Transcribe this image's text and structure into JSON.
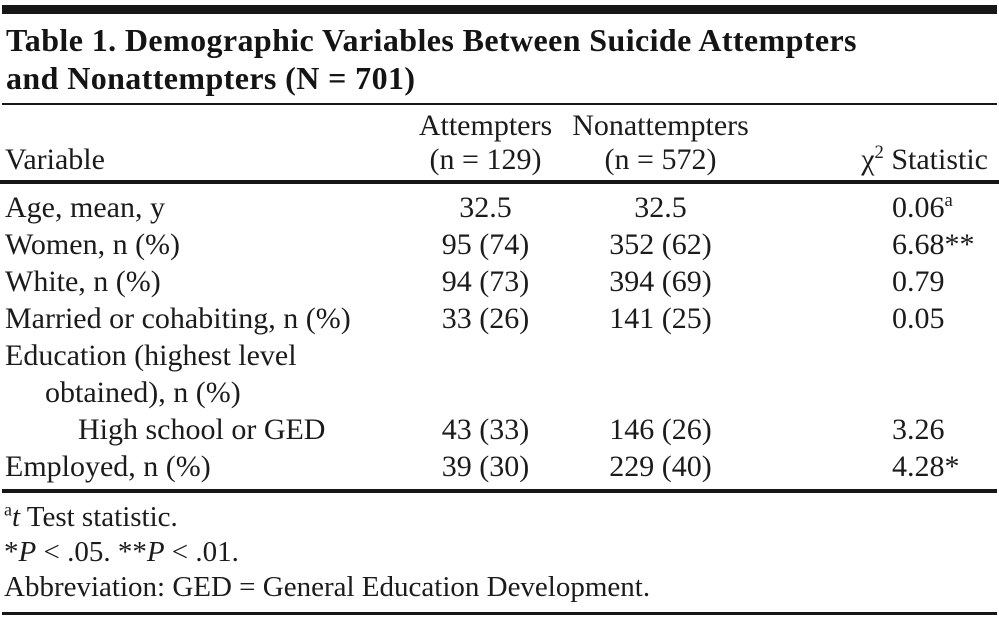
{
  "colors": {
    "ink": "#1b1b1b",
    "background": "#ffffff",
    "rule": "#171717"
  },
  "title": {
    "line1": "Table 1. Demographic Variables Between Suicide Attempters",
    "line2": "and Nonattempters (N = 701)"
  },
  "table": {
    "header": {
      "variable": "Variable",
      "col2_line1": "Attempters",
      "col2_line2": "(n = 129)",
      "col3_line1": "Nonattempters",
      "col3_line2": "(n = 572)",
      "chi": "χ",
      "chi_sup": "2",
      "chi_rest": " Statistic"
    },
    "rows": [
      {
        "variable": "Age, mean, y",
        "attempters": "32.5",
        "nonattempters": "32.5",
        "stat": "0.06",
        "stat_sup": "a"
      },
      {
        "variable": "Women, n (%)",
        "attempters": "95 (74)",
        "nonattempters": "352 (62)",
        "stat": "6.68**",
        "stat_sup": ""
      },
      {
        "variable": "White, n (%)",
        "attempters": "94 (73)",
        "nonattempters": "394 (69)",
        "stat": "0.79",
        "stat_sup": ""
      },
      {
        "variable": "Married or cohabiting, n (%)",
        "attempters": "33 (26)",
        "nonattempters": "141 (25)",
        "stat": "0.05",
        "stat_sup": ""
      },
      {
        "variable": "Education (highest level",
        "attempters": "",
        "nonattempters": "",
        "stat": "",
        "stat_sup": ""
      },
      {
        "variable": "obtained), n (%)",
        "attempters": "",
        "nonattempters": "",
        "stat": "",
        "stat_sup": ""
      },
      {
        "variable": "High school or GED",
        "attempters": "43 (33)",
        "nonattempters": "146 (26)",
        "stat": "3.26",
        "stat_sup": ""
      },
      {
        "variable": "Employed, n (%)",
        "attempters": "39 (30)",
        "nonattempters": "229 (40)",
        "stat": "4.28*",
        "stat_sup": ""
      }
    ]
  },
  "footnotes": {
    "a_marker": "a",
    "a_italic": "t",
    "a_text": " Test statistic.",
    "p1_star": "*",
    "p1_var": "P",
    "p1_text": " < .05. ",
    "p2_star": "**",
    "p2_var": "P",
    "p2_text": " < .01.",
    "abbrev": "Abbreviation: GED = General Education Development."
  }
}
